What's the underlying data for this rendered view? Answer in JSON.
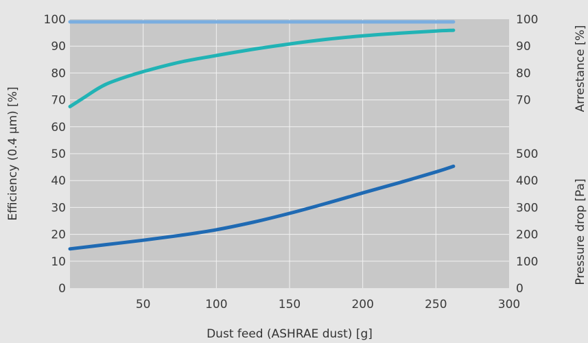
{
  "chart_data": {
    "type": "line",
    "xlabel": "Dust feed (ASHRAE dust) [g]",
    "xlim": [
      0,
      300
    ],
    "x_ticks": [
      "50",
      "100",
      "150",
      "200",
      "250",
      "300"
    ],
    "x_tick_values": [
      50,
      100,
      150,
      200,
      250,
      300
    ],
    "axes": {
      "left": {
        "label": "Efficiency (0.4 µm) [%]",
        "range": [
          0,
          100
        ],
        "ticks": [
          "0",
          "10",
          "20",
          "30",
          "40",
          "50",
          "60",
          "70",
          "80",
          "90",
          "100"
        ],
        "tick_values": [
          0,
          10,
          20,
          30,
          40,
          50,
          60,
          70,
          80,
          90,
          100
        ]
      },
      "right_top": {
        "label": "Arrestance [%]",
        "range": [
          60,
          100
        ],
        "ticks": [
          "70",
          "80",
          "90",
          "100"
        ],
        "tick_values": [
          70,
          80,
          90,
          100
        ]
      },
      "right_bottom": {
        "label": "Pressure drop [Pa]",
        "range": [
          0,
          500
        ],
        "ticks": [
          "0",
          "100",
          "200",
          "300",
          "400",
          "500"
        ],
        "tick_values": [
          0,
          100,
          200,
          300,
          400,
          500
        ]
      }
    },
    "grid": true,
    "series": [
      {
        "axis": "right_top",
        "color": "#7aaee0",
        "points": [
          [
            0,
            99
          ],
          [
            262,
            99
          ]
        ]
      },
      {
        "axis": "left",
        "color": "#21b3b5",
        "points": [
          [
            0,
            67.5
          ],
          [
            10,
            71
          ],
          [
            20,
            74.5
          ],
          [
            30,
            77
          ],
          [
            50,
            80.5
          ],
          [
            75,
            84
          ],
          [
            100,
            86.5
          ],
          [
            125,
            88.8
          ],
          [
            150,
            90.8
          ],
          [
            175,
            92.5
          ],
          [
            200,
            93.8
          ],
          [
            225,
            94.8
          ],
          [
            250,
            95.6
          ],
          [
            262,
            95.9
          ]
        ]
      },
      {
        "axis": "right_bottom",
        "color": "#1f6ab3",
        "points": [
          [
            0,
            146
          ],
          [
            25,
            162
          ],
          [
            50,
            178
          ],
          [
            75,
            196
          ],
          [
            100,
            217
          ],
          [
            125,
            245
          ],
          [
            150,
            278
          ],
          [
            175,
            315
          ],
          [
            200,
            354
          ],
          [
            225,
            392
          ],
          [
            250,
            432
          ],
          [
            262,
            453
          ]
        ]
      }
    ]
  }
}
